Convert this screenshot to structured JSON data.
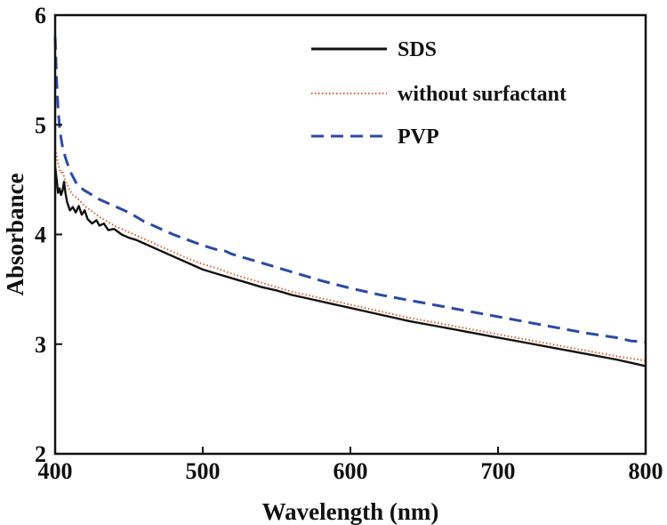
{
  "chart_data": {
    "type": "line",
    "title": "",
    "xlabel": "Wavelength (nm)",
    "ylabel": "Absorbance",
    "xlim": [
      400,
      800
    ],
    "ylim": [
      2,
      6
    ],
    "xticks": [
      400,
      500,
      600,
      700,
      800
    ],
    "yticks": [
      2,
      3,
      4,
      5,
      6
    ],
    "grid": false,
    "legend_position": "top-right",
    "series": [
      {
        "name": "SDS",
        "color": "#111111",
        "style": "solid",
        "x": [
          400,
          401,
          402,
          403,
          404,
          405,
          406,
          407,
          408,
          410,
          412,
          414,
          416,
          418,
          420,
          422,
          425,
          428,
          430,
          433,
          436,
          440,
          445,
          450,
          455,
          460,
          470,
          480,
          490,
          500,
          510,
          520,
          530,
          540,
          550,
          560,
          570,
          580,
          590,
          600,
          620,
          640,
          660,
          680,
          700,
          720,
          740,
          760,
          780,
          790,
          800
        ],
        "y": [
          4.62,
          4.5,
          4.38,
          4.42,
          4.36,
          4.4,
          4.48,
          4.38,
          4.3,
          4.22,
          4.25,
          4.2,
          4.26,
          4.18,
          4.22,
          4.14,
          4.1,
          4.13,
          4.08,
          4.1,
          4.04,
          4.05,
          4.0,
          3.97,
          3.95,
          3.92,
          3.86,
          3.8,
          3.74,
          3.68,
          3.64,
          3.6,
          3.56,
          3.52,
          3.49,
          3.45,
          3.42,
          3.39,
          3.36,
          3.33,
          3.27,
          3.21,
          3.16,
          3.11,
          3.06,
          3.01,
          2.96,
          2.91,
          2.86,
          2.83,
          2.8
        ]
      },
      {
        "name": "without surfactant",
        "color": "#d9602e",
        "style": "dotted",
        "x": [
          400,
          401,
          402,
          403,
          404,
          405,
          406,
          408,
          410,
          412,
          415,
          418,
          420,
          425,
          430,
          435,
          440,
          445,
          450,
          460,
          470,
          480,
          490,
          500,
          510,
          520,
          530,
          540,
          550,
          560,
          570,
          580,
          590,
          600,
          620,
          640,
          660,
          680,
          700,
          720,
          740,
          760,
          780,
          790,
          800
        ],
        "y": [
          4.78,
          4.72,
          4.64,
          4.6,
          4.56,
          4.58,
          4.52,
          4.46,
          4.4,
          4.36,
          4.33,
          4.29,
          4.26,
          4.21,
          4.16,
          4.12,
          4.08,
          4.05,
          4.02,
          3.96,
          3.9,
          3.84,
          3.78,
          3.73,
          3.69,
          3.64,
          3.6,
          3.56,
          3.52,
          3.48,
          3.45,
          3.42,
          3.39,
          3.36,
          3.3,
          3.24,
          3.19,
          3.14,
          3.09,
          3.04,
          2.99,
          2.94,
          2.89,
          2.87,
          2.85
        ]
      },
      {
        "name": "PVP",
        "color": "#2c4aa3",
        "style": "dashed",
        "x": [
          400,
          401,
          402,
          403,
          404,
          405,
          407,
          410,
          415,
          420,
          425,
          430,
          440,
          450,
          460,
          470,
          480,
          490,
          500,
          510,
          515,
          520,
          530,
          540,
          560,
          580,
          600,
          620,
          640,
          660,
          680,
          700,
          720,
          740,
          760,
          780,
          790,
          800
        ],
        "y": [
          5.8,
          5.4,
          5.15,
          4.98,
          4.88,
          4.8,
          4.7,
          4.58,
          4.45,
          4.4,
          4.36,
          4.32,
          4.26,
          4.2,
          4.12,
          4.06,
          4.0,
          3.95,
          3.9,
          3.86,
          3.85,
          3.82,
          3.78,
          3.74,
          3.66,
          3.58,
          3.51,
          3.45,
          3.4,
          3.35,
          3.3,
          3.25,
          3.2,
          3.15,
          3.1,
          3.06,
          3.03,
          3.02
        ]
      }
    ]
  }
}
